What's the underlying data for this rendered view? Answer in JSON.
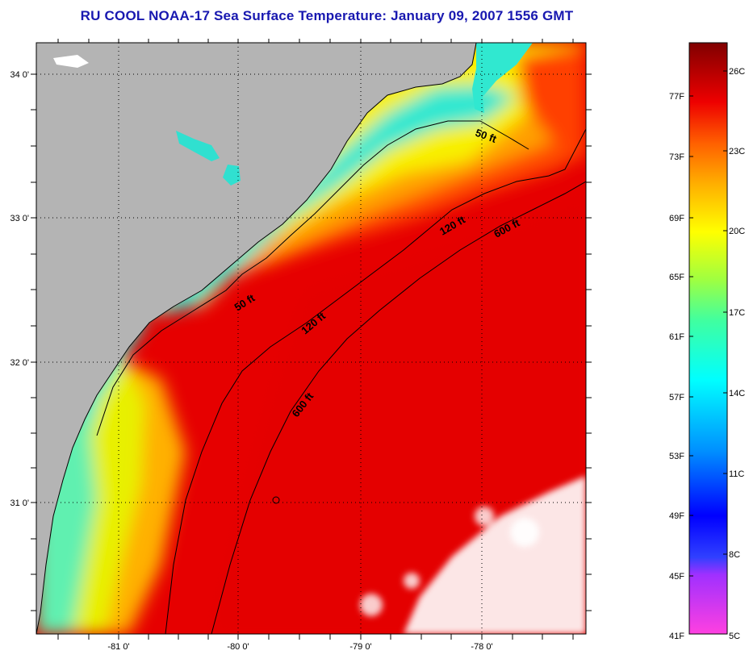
{
  "title": "RU COOL  NOAA-17  Sea Surface Temperature:  January 09, 2007 1556 GMT",
  "map": {
    "lat_labels": [
      "34 0'",
      "33 0'",
      "32 0'",
      "31 0'"
    ],
    "lon_labels": [
      "-81 0'",
      "-80 0'",
      "-79 0'",
      "-78 0'"
    ],
    "contours": [
      {
        "label": "50 ft"
      },
      {
        "label": "50 ft"
      },
      {
        "label": "120 ft"
      },
      {
        "label": "120 ft"
      },
      {
        "label": "600 ft"
      },
      {
        "label": "600 ft"
      }
    ]
  },
  "colorbar": {
    "fahrenheit_labels": [
      "77F",
      "73F",
      "69F",
      "65F",
      "61F",
      "57F",
      "53F",
      "49F",
      "45F",
      "41F"
    ],
    "celsius_labels": [
      "26C",
      "23C",
      "20C",
      "17C",
      "14C",
      "11C",
      "8C",
      "5C"
    ],
    "range_celsius": [
      5,
      27
    ]
  },
  "colors": {
    "title": "#1818b0",
    "land": "#b4b4b4",
    "cloud": "#ffffff",
    "warm": "#e80000",
    "cold_shelf": "#30e8d0"
  }
}
